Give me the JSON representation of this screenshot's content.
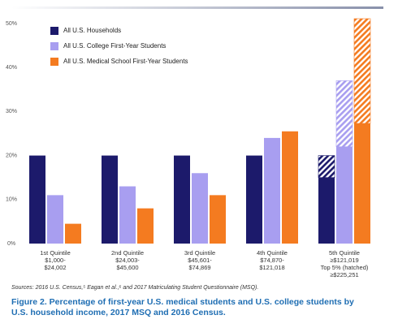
{
  "chart_data": {
    "type": "bar",
    "categories": [
      "1st Quintile",
      "2nd Quintile",
      "3rd Quintile",
      "4th Quintile",
      "5th Quintile"
    ],
    "category_sublabels": [
      [
        "$1,000-",
        "$24,002"
      ],
      [
        "$24,003-",
        "$45,600"
      ],
      [
        "$45,601-",
        "$74,869"
      ],
      [
        "$74,870-",
        "$121,018"
      ],
      [
        "≥$121,019",
        "Top 5% (hatched)",
        "≥$225,251"
      ]
    ],
    "series": [
      {
        "name": "All U.S. Households",
        "color": "#1c1a6b",
        "values": [
          20,
          20,
          20,
          20,
          15
        ],
        "hatched_values": [
          null,
          null,
          null,
          null,
          5
        ]
      },
      {
        "name": "All U.S. College First-Year Students",
        "color": "#a89ef0",
        "values": [
          11,
          13,
          16,
          24,
          22
        ],
        "hatched_values": [
          null,
          null,
          null,
          null,
          15
        ]
      },
      {
        "name": "All U.S. Medical School First-Year Students",
        "color": "#f47b20",
        "values": [
          4.5,
          8,
          11,
          25.5,
          27.3
        ],
        "hatched_values": [
          null,
          null,
          null,
          null,
          23.8
        ]
      }
    ],
    "ylim": [
      0,
      53
    ],
    "yticks": [
      {
        "value": 0,
        "label": "0%"
      },
      {
        "value": 10,
        "label": "10%"
      },
      {
        "value": 20,
        "label": "20%"
      },
      {
        "value": 30,
        "label": "30%"
      },
      {
        "value": 40,
        "label": "40%"
      },
      {
        "value": 50,
        "label": "50%"
      }
    ],
    "grid": false,
    "legend": "upper left",
    "source": "Sources: 2016 U.S. Census,⁵ Eagan et al.,⁶ and 2017 Matriculating Student Questionnaire (MSQ).",
    "caption": "Figure 2. Percentage of first-year U.S. medical students and U.S. college students by U.S. household income, 2017 MSQ and 2016 Census."
  }
}
